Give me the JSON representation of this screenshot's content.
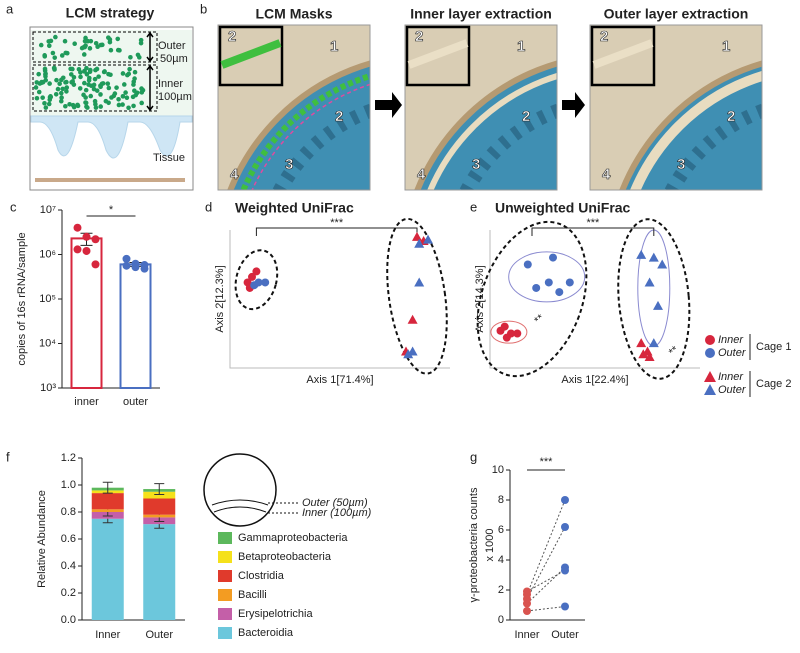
{
  "panel_a": {
    "letter": "a",
    "title": "LCM strategy",
    "outer": "Outer",
    "outer_size": "50µm",
    "inner": "Inner",
    "inner_size": "100µm",
    "tissue": "Tissue"
  },
  "panel_b": {
    "letter": "b",
    "titles": [
      "LCM Masks",
      "Inner layer extraction",
      "Outer layer extraction"
    ],
    "region_labels": [
      "1",
      "2",
      "3",
      "4"
    ]
  },
  "chart_data": [
    {
      "type": "bar",
      "panel": "c",
      "ylabel": "copies of 16s rRNA/sample",
      "categories": [
        "inner",
        "outer"
      ],
      "values": [
        2300000,
        600000
      ],
      "errors": [
        700000,
        60000
      ],
      "colors": [
        "#d7263d",
        "#4a6fc1"
      ],
      "points": [
        [
          4000000,
          2500000,
          2200000,
          1300000,
          1200000,
          600000
        ],
        [
          800000,
          620000,
          580000,
          560000,
          520000,
          480000
        ]
      ],
      "log_scale": true,
      "ylim": [
        1000,
        10000000
      ],
      "yticks": [
        {
          "value": 1000,
          "label": "10³"
        },
        {
          "value": 10000,
          "label": "10⁴"
        },
        {
          "value": 100000,
          "label": "10⁵"
        },
        {
          "value": 1000000,
          "label": "10⁶"
        },
        {
          "value": 10000000,
          "label": "10⁷"
        }
      ],
      "annotations": [
        "*"
      ]
    },
    {
      "type": "scatter",
      "panel": "d",
      "title": "Weighted UniFrac",
      "xlabel": "Axis 1[71.4%]",
      "ylabel": "Axis 2[12.3%]",
      "xlim": [
        0,
        1
      ],
      "ylim": [
        0,
        1
      ],
      "series": [
        {
          "marker": "circle",
          "color": "#d7263d",
          "x": [
            0.08,
            0.1,
            0.12,
            0.09
          ],
          "y": [
            0.62,
            0.66,
            0.7,
            0.58
          ]
        },
        {
          "marker": "circle",
          "color": "#4a6fc1",
          "x": [
            0.13,
            0.16,
            0.11
          ],
          "y": [
            0.62,
            0.62,
            0.6
          ]
        },
        {
          "marker": "triangle",
          "color": "#d7263d",
          "x": [
            0.88,
            0.85,
            0.83,
            0.8
          ],
          "y": [
            0.92,
            0.95,
            0.35,
            0.12
          ]
        },
        {
          "marker": "triangle",
          "color": "#4a6fc1",
          "x": [
            0.86,
            0.9,
            0.86,
            0.81,
            0.83
          ],
          "y": [
            0.9,
            0.93,
            0.62,
            0.1,
            0.12
          ]
        }
      ],
      "annotations": [
        "***"
      ]
    },
    {
      "type": "scatter",
      "panel": "e",
      "title": "Unweighted UniFrac",
      "xlabel": "Axis 1[22.4%]",
      "ylabel": "Axis 2[14.3%]",
      "xlim": [
        0,
        1
      ],
      "ylim": [
        0,
        1
      ],
      "series": [
        {
          "name": "Inner",
          "group": "Cage 1",
          "marker": "circle",
          "color": "#d7263d",
          "x": [
            0.07,
            0.05,
            0.1,
            0.13,
            0.08
          ],
          "y": [
            0.3,
            0.27,
            0.25,
            0.25,
            0.22
          ]
        },
        {
          "name": "Outer",
          "group": "Cage 1",
          "marker": "circle",
          "color": "#4a6fc1",
          "x": [
            0.18,
            0.22,
            0.28,
            0.33,
            0.3,
            0.38
          ],
          "y": [
            0.75,
            0.58,
            0.62,
            0.55,
            0.8,
            0.62
          ]
        },
        {
          "name": "Inner",
          "group": "Cage 2",
          "marker": "triangle",
          "color": "#d7263d",
          "x": [
            0.72,
            0.73,
            0.75,
            0.76
          ],
          "y": [
            0.18,
            0.1,
            0.12,
            0.08
          ]
        },
        {
          "name": "Outer",
          "group": "Cage 2",
          "marker": "triangle",
          "color": "#4a6fc1",
          "x": [
            0.72,
            0.78,
            0.82,
            0.76,
            0.8,
            0.78
          ],
          "y": [
            0.82,
            0.8,
            0.75,
            0.62,
            0.45,
            0.18
          ]
        }
      ],
      "annotations": [
        "***",
        "**",
        "**"
      ]
    },
    {
      "type": "stacked_bar",
      "panel": "f",
      "ylabel": "Relative Abundance",
      "categories": [
        "Inner",
        "Outer"
      ],
      "ylim": [
        0,
        1.2
      ],
      "yticks": [
        {
          "value": 0,
          "label": "0.0"
        },
        0.2,
        0.4,
        0.6,
        0.8,
        {
          "value": 1,
          "label": "1.0"
        },
        1.2
      ],
      "series": [
        {
          "name": "Bacteroidia",
          "color": "#6cc7dc",
          "values": [
            0.75,
            0.71
          ],
          "errors": [
            0.03,
            0.03
          ]
        },
        {
          "name": "Erysipelotrichia",
          "color": "#c45fa8",
          "values": [
            0.05,
            0.05
          ],
          "errors": [
            0.03,
            0.03
          ]
        },
        {
          "name": "Bacilli",
          "color": "#f39c22",
          "values": [
            0.02,
            0.02
          ]
        },
        {
          "name": "Clostridia",
          "color": "#e03a2c",
          "values": [
            0.12,
            0.12
          ]
        },
        {
          "name": "Betaproteobacteria",
          "color": "#f5e11b",
          "values": [
            0.02,
            0.05
          ]
        },
        {
          "name": "Gammaproteobacteria",
          "color": "#5cb85c",
          "values": [
            0.02,
            0.02
          ],
          "errors": [
            0.04,
            0.04
          ]
        }
      ],
      "annotations": [
        {
          "text": "Outer (50µm)",
          "color": "#2a7fc0"
        },
        {
          "text": "Inner (100µm)",
          "color": "#d7263d"
        }
      ]
    },
    {
      "type": "paired_dot",
      "panel": "g",
      "ylabel": [
        "γ-proteobacteria counts",
        "x 1000"
      ],
      "categories": [
        "Inner",
        "Outer"
      ],
      "colors": [
        "#d9534f",
        "#4a6fc1"
      ],
      "values": [
        [
          0.6,
          1.1,
          1.4,
          1.7,
          1.9
        ],
        [
          0.9,
          3.5,
          6.2,
          8.0,
          3.3
        ]
      ],
      "ylim": [
        0,
        10
      ],
      "yticks": [
        0,
        2,
        4,
        6,
        8,
        10
      ],
      "annotations": [
        "***"
      ]
    }
  ]
}
